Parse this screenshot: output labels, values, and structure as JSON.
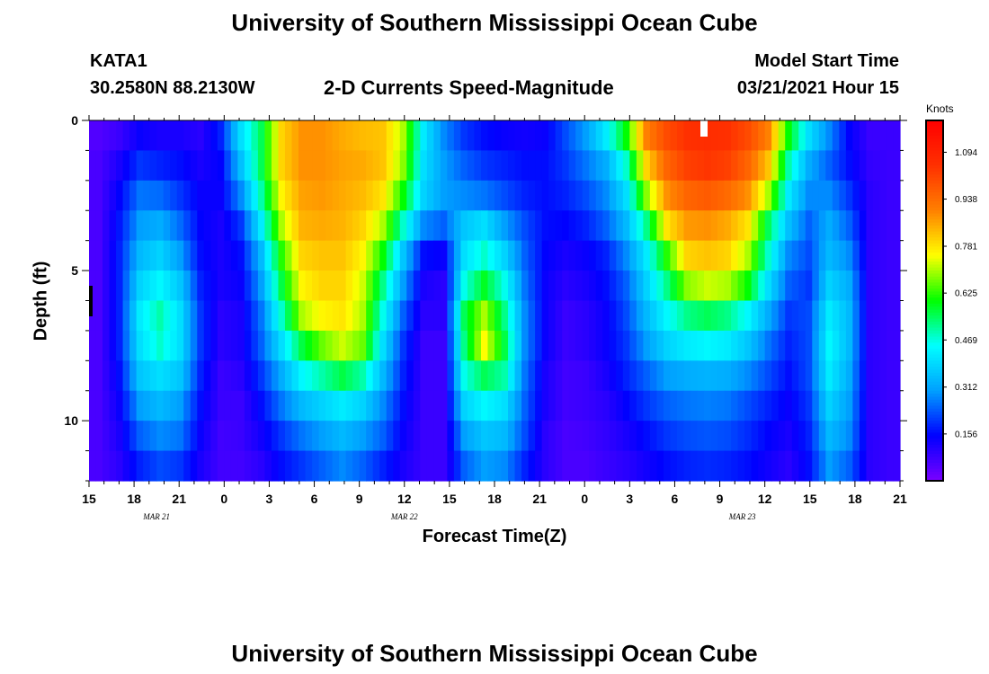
{
  "page": {
    "title_top": "University of Southern Mississippi Ocean Cube",
    "title_bottom": "University of Southern Mississippi Ocean Cube",
    "station_id": "KATA1",
    "station_coords": "30.2580N 88.2130W",
    "model_start_label": "Model Start Time",
    "model_start_value": "03/21/2021 Hour 15"
  },
  "chart_data": {
    "type": "heatmap",
    "title": "2-D Currents Speed-Magnitude",
    "xlabel": "Forecast Time(Z)",
    "ylabel": "Depth (ft)",
    "x_hours_from_start": [
      0,
      54
    ],
    "x_tick_labels": [
      "15",
      "18",
      "21",
      "0",
      "3",
      "6",
      "9",
      "12",
      "15",
      "18",
      "21",
      "0",
      "3",
      "6",
      "9",
      "12",
      "15",
      "18",
      "21"
    ],
    "date_labels": [
      {
        "text": "MAR  21",
        "hour": 4.5
      },
      {
        "text": "MAR  22",
        "hour": 21
      },
      {
        "text": "MAR  23",
        "hour": 43.5
      }
    ],
    "y_range": [
      0,
      12
    ],
    "y_major_ticks": [
      0,
      5,
      10
    ],
    "y_minor_step": 1,
    "y_rows": 12,
    "colorbar": {
      "unit": "Knots",
      "range": [
        0,
        1.2
      ],
      "tick_labels": [
        "1.094",
        "0.938",
        "0.781",
        "0.625",
        "0.469",
        "0.312",
        "0.156"
      ],
      "colors": [
        "#7a00ff",
        "#0000ff",
        "#00a0ff",
        "#00ffff",
        "#00ff00",
        "#ffff00",
        "#ff8000",
        "#ff3000",
        "#ff0000"
      ]
    },
    "speed_knots": [
      [
        0.05,
        0.08,
        0.14,
        0.12,
        0.12,
        0.1,
        0.18,
        0.4,
        0.55,
        0.8,
        0.88,
        0.88,
        0.85,
        0.83,
        0.82,
        0.7,
        0.42,
        0.28,
        0.2,
        0.16,
        0.14,
        0.13,
        0.14,
        0.22,
        0.3,
        0.42,
        0.6,
        0.9,
        1.0,
        1.05,
        1.06,
        1.05,
        1.0,
        0.9,
        0.6,
        0.4,
        0.28,
        0.15,
        0.08,
        0.08
      ],
      [
        0.06,
        0.12,
        0.2,
        0.18,
        0.16,
        0.12,
        0.15,
        0.35,
        0.55,
        0.8,
        0.88,
        0.88,
        0.86,
        0.85,
        0.82,
        0.68,
        0.4,
        0.3,
        0.24,
        0.2,
        0.18,
        0.16,
        0.16,
        0.2,
        0.26,
        0.32,
        0.48,
        0.8,
        0.95,
        1.02,
        1.04,
        1.02,
        0.95,
        0.82,
        0.5,
        0.32,
        0.24,
        0.16,
        0.09,
        0.08
      ],
      [
        0.06,
        0.15,
        0.26,
        0.25,
        0.2,
        0.14,
        0.14,
        0.28,
        0.5,
        0.76,
        0.86,
        0.87,
        0.85,
        0.83,
        0.78,
        0.6,
        0.38,
        0.3,
        0.28,
        0.26,
        0.22,
        0.18,
        0.16,
        0.18,
        0.22,
        0.28,
        0.4,
        0.68,
        0.88,
        0.95,
        0.97,
        0.94,
        0.88,
        0.7,
        0.42,
        0.28,
        0.28,
        0.2,
        0.1,
        0.08
      ],
      [
        0.06,
        0.17,
        0.3,
        0.32,
        0.25,
        0.15,
        0.12,
        0.2,
        0.42,
        0.7,
        0.84,
        0.85,
        0.84,
        0.8,
        0.7,
        0.48,
        0.28,
        0.24,
        0.36,
        0.4,
        0.3,
        0.22,
        0.16,
        0.15,
        0.18,
        0.24,
        0.34,
        0.52,
        0.78,
        0.87,
        0.88,
        0.85,
        0.78,
        0.55,
        0.35,
        0.24,
        0.32,
        0.24,
        0.1,
        0.08
      ],
      [
        0.06,
        0.18,
        0.34,
        0.38,
        0.3,
        0.16,
        0.12,
        0.16,
        0.34,
        0.62,
        0.8,
        0.82,
        0.82,
        0.76,
        0.6,
        0.36,
        0.16,
        0.14,
        0.4,
        0.48,
        0.38,
        0.24,
        0.15,
        0.12,
        0.14,
        0.18,
        0.28,
        0.42,
        0.62,
        0.8,
        0.82,
        0.8,
        0.7,
        0.48,
        0.28,
        0.22,
        0.34,
        0.28,
        0.1,
        0.08
      ],
      [
        0.06,
        0.18,
        0.38,
        0.44,
        0.36,
        0.18,
        0.12,
        0.14,
        0.3,
        0.56,
        0.76,
        0.8,
        0.8,
        0.72,
        0.52,
        0.3,
        0.12,
        0.1,
        0.46,
        0.58,
        0.46,
        0.26,
        0.14,
        0.1,
        0.12,
        0.16,
        0.24,
        0.38,
        0.52,
        0.68,
        0.72,
        0.7,
        0.6,
        0.4,
        0.24,
        0.2,
        0.38,
        0.32,
        0.1,
        0.08
      ],
      [
        0.06,
        0.18,
        0.42,
        0.5,
        0.4,
        0.2,
        0.1,
        0.12,
        0.26,
        0.48,
        0.7,
        0.76,
        0.78,
        0.7,
        0.46,
        0.24,
        0.1,
        0.1,
        0.55,
        0.7,
        0.52,
        0.28,
        0.14,
        0.08,
        0.1,
        0.14,
        0.22,
        0.34,
        0.44,
        0.52,
        0.55,
        0.52,
        0.44,
        0.32,
        0.2,
        0.22,
        0.42,
        0.34,
        0.1,
        0.08
      ],
      [
        0.06,
        0.18,
        0.4,
        0.48,
        0.4,
        0.2,
        0.1,
        0.12,
        0.24,
        0.4,
        0.56,
        0.66,
        0.72,
        0.66,
        0.4,
        0.2,
        0.08,
        0.08,
        0.52,
        0.75,
        0.56,
        0.28,
        0.14,
        0.08,
        0.1,
        0.14,
        0.2,
        0.3,
        0.38,
        0.42,
        0.44,
        0.42,
        0.36,
        0.26,
        0.18,
        0.22,
        0.44,
        0.34,
        0.1,
        0.08
      ],
      [
        0.06,
        0.16,
        0.36,
        0.4,
        0.36,
        0.18,
        0.08,
        0.1,
        0.2,
        0.32,
        0.44,
        0.5,
        0.56,
        0.5,
        0.34,
        0.18,
        0.08,
        0.08,
        0.46,
        0.55,
        0.5,
        0.26,
        0.12,
        0.07,
        0.08,
        0.12,
        0.18,
        0.24,
        0.3,
        0.32,
        0.33,
        0.32,
        0.28,
        0.22,
        0.16,
        0.22,
        0.42,
        0.32,
        0.1,
        0.08
      ],
      [
        0.06,
        0.14,
        0.3,
        0.34,
        0.3,
        0.16,
        0.08,
        0.08,
        0.16,
        0.26,
        0.34,
        0.38,
        0.42,
        0.38,
        0.28,
        0.16,
        0.08,
        0.08,
        0.38,
        0.44,
        0.4,
        0.24,
        0.12,
        0.07,
        0.08,
        0.1,
        0.15,
        0.2,
        0.24,
        0.26,
        0.27,
        0.26,
        0.22,
        0.18,
        0.14,
        0.2,
        0.38,
        0.3,
        0.1,
        0.08
      ],
      [
        0.06,
        0.12,
        0.24,
        0.28,
        0.26,
        0.14,
        0.07,
        0.08,
        0.13,
        0.2,
        0.26,
        0.3,
        0.34,
        0.3,
        0.24,
        0.14,
        0.08,
        0.08,
        0.3,
        0.36,
        0.34,
        0.22,
        0.1,
        0.06,
        0.07,
        0.09,
        0.12,
        0.16,
        0.2,
        0.22,
        0.23,
        0.22,
        0.19,
        0.15,
        0.12,
        0.18,
        0.34,
        0.28,
        0.1,
        0.08
      ],
      [
        0.06,
        0.1,
        0.18,
        0.22,
        0.2,
        0.12,
        0.07,
        0.07,
        0.1,
        0.16,
        0.2,
        0.24,
        0.28,
        0.24,
        0.18,
        0.12,
        0.08,
        0.08,
        0.24,
        0.3,
        0.28,
        0.18,
        0.1,
        0.06,
        0.06,
        0.08,
        0.1,
        0.13,
        0.16,
        0.18,
        0.19,
        0.18,
        0.16,
        0.13,
        0.1,
        0.16,
        0.3,
        0.24,
        0.1,
        0.08
      ]
    ]
  }
}
